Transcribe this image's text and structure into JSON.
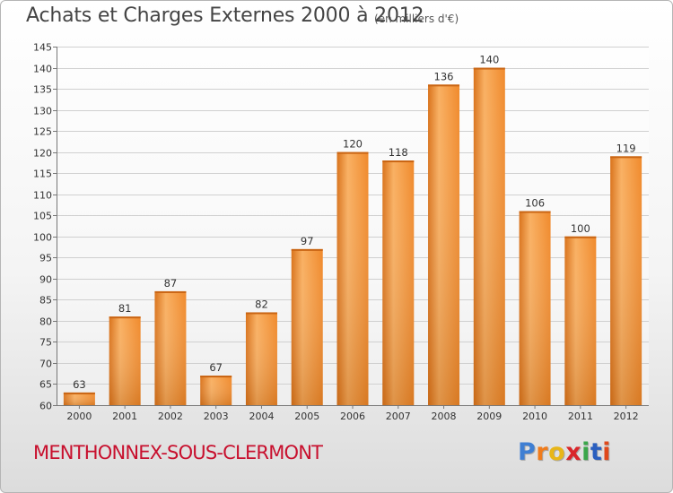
{
  "chart_data": {
    "type": "bar",
    "title": "Achats et Charges Externes 2000 à 2012",
    "subtitle": "(en milliers d'€)",
    "categories": [
      "2000",
      "2001",
      "2002",
      "2003",
      "2004",
      "2005",
      "2006",
      "2007",
      "2008",
      "2009",
      "2010",
      "2011",
      "2012"
    ],
    "values": [
      63,
      81,
      87,
      67,
      82,
      97,
      120,
      118,
      136,
      140,
      106,
      100,
      119
    ],
    "ylim": [
      60,
      145
    ],
    "yticks": [
      60,
      65,
      70,
      75,
      80,
      85,
      90,
      95,
      100,
      105,
      110,
      115,
      120,
      125,
      130,
      135,
      140,
      145
    ],
    "xlabel": "",
    "ylabel": "",
    "grid": true,
    "bar_color": "#f08a2c",
    "bar_color_light": "#f9b062",
    "bar_color_dark": "#d9721a"
  },
  "footer": {
    "commune": "MENTHONNEX-SOUS-CLERMONT",
    "commune_color": "#c8102e"
  },
  "logo": {
    "text": "Proxiti",
    "letter_colors": [
      "#3f7fd3",
      "#f07c1c",
      "#e8b618",
      "#d9262a",
      "#3aa64a",
      "#2a5fbf",
      "#e0491b"
    ]
  }
}
